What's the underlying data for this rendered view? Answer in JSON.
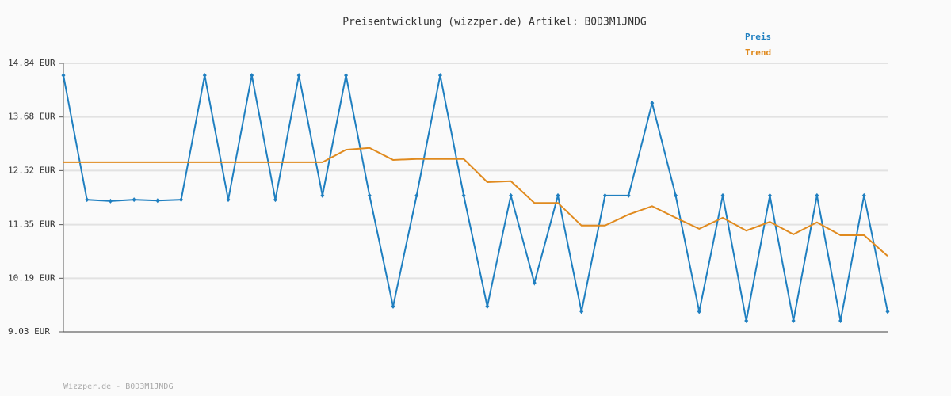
{
  "chart_data": {
    "type": "line",
    "title": "Preisentwicklung (wizzper.de) Artikel: B0D3M1JNDG",
    "footer": "Wizzper.de - B0D3M1JNDG",
    "ylim": [
      9.03,
      14.84
    ],
    "yticks": [
      {
        "value": 9.03,
        "label": "9.03 EUR"
      },
      {
        "value": 10.19,
        "label": "10.19 EUR"
      },
      {
        "value": 11.35,
        "label": "11.35 EUR"
      },
      {
        "value": 12.52,
        "label": "12.52 EUR"
      },
      {
        "value": 13.68,
        "label": "13.68 EUR"
      },
      {
        "value": 14.84,
        "label": "14.84 EUR"
      }
    ],
    "grid": true,
    "legend": "top-right",
    "series": [
      {
        "name": "Preis",
        "color": "#1f7fc0",
        "markers": true,
        "values": [
          14.58,
          11.89,
          11.86,
          11.89,
          11.87,
          11.89,
          14.58,
          11.89,
          14.58,
          11.89,
          14.58,
          11.98,
          14.58,
          11.98,
          9.58,
          11.98,
          14.58,
          11.98,
          9.58,
          11.98,
          10.09,
          11.98,
          9.47,
          11.98,
          11.98,
          13.98,
          11.98,
          9.47,
          11.98,
          9.27,
          11.98,
          9.27,
          11.98,
          9.27,
          11.98,
          9.47
        ]
      },
      {
        "name": "Trend",
        "color": "#e08a1e",
        "markers": false,
        "values": [
          12.7,
          12.7,
          12.7,
          12.7,
          12.7,
          12.7,
          12.7,
          12.7,
          12.7,
          12.7,
          12.7,
          12.7,
          12.97,
          13.01,
          12.75,
          12.77,
          12.77,
          12.77,
          12.27,
          12.29,
          11.82,
          11.82,
          11.33,
          11.33,
          11.57,
          11.75,
          11.5,
          11.26,
          11.5,
          11.22,
          11.41,
          11.14,
          11.4,
          11.12,
          11.12,
          10.67
        ]
      }
    ]
  }
}
